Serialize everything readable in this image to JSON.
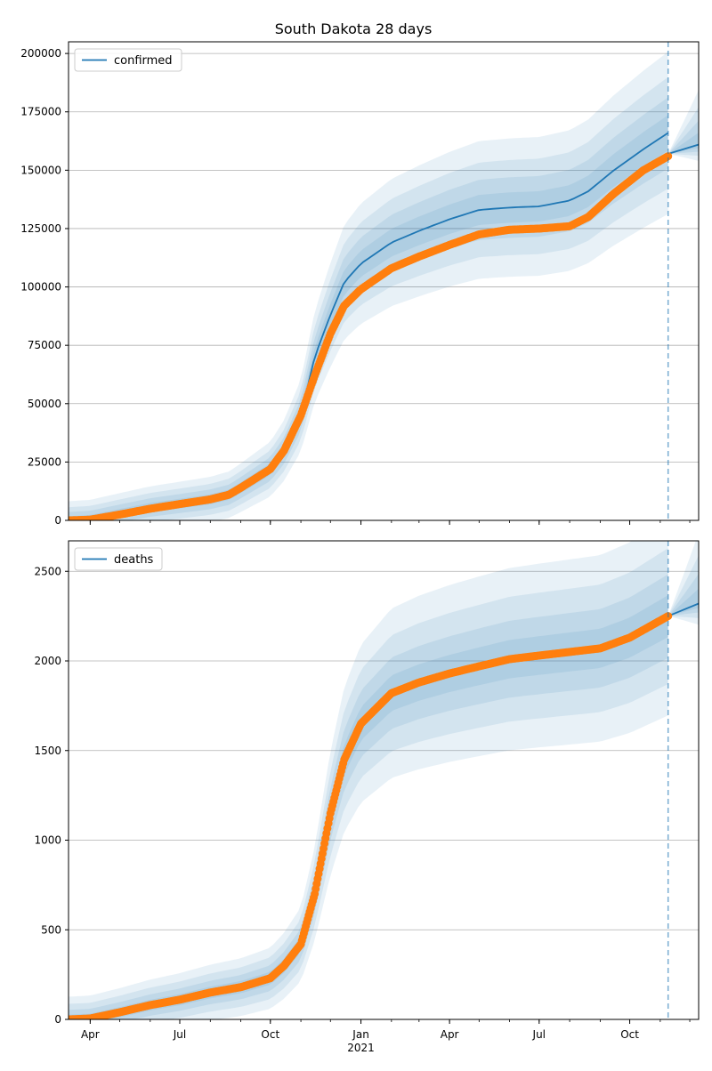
{
  "chart_data": {
    "title": "South Dakota 28 days",
    "x_axis": {
      "ticks": [
        {
          "date": "2020-04-01",
          "label": "Apr",
          "sublabel": ""
        },
        {
          "date": "2020-07-01",
          "label": "Jul",
          "sublabel": ""
        },
        {
          "date": "2020-10-01",
          "label": "Oct",
          "sublabel": ""
        },
        {
          "date": "2021-01-01",
          "label": "Jan",
          "sublabel": "2021"
        },
        {
          "date": "2021-04-01",
          "label": "Apr",
          "sublabel": ""
        },
        {
          "date": "2021-07-01",
          "label": "Jul",
          "sublabel": ""
        },
        {
          "date": "2021-10-01",
          "label": "Oct",
          "sublabel": ""
        }
      ],
      "range": [
        "2020-03-10",
        "2021-12-10"
      ],
      "forecast_start": "2021-11-09"
    },
    "panels": [
      {
        "type": "line",
        "legend": "confirmed",
        "legend_position": "upper-left",
        "grid": true,
        "ylim": [
          0,
          205000
        ],
        "yticks": [
          0,
          25000,
          50000,
          75000,
          100000,
          125000,
          150000,
          175000,
          200000
        ],
        "model": [
          [
            "2020-03-10",
            0
          ],
          [
            "2020-04-01",
            500
          ],
          [
            "2020-05-01",
            3000
          ],
          [
            "2020-06-01",
            5500
          ],
          [
            "2020-07-01",
            7200
          ],
          [
            "2020-08-01",
            9000
          ],
          [
            "2020-08-20",
            11000
          ],
          [
            "2020-09-01",
            14000
          ],
          [
            "2020-10-01",
            22000
          ],
          [
            "2020-10-15",
            30000
          ],
          [
            "2020-11-01",
            45000
          ],
          [
            "2020-11-15",
            70000
          ],
          [
            "2020-12-01",
            88000
          ],
          [
            "2020-12-15",
            102000
          ],
          [
            "2021-01-01",
            110000
          ],
          [
            "2021-02-01",
            119000
          ],
          [
            "2021-03-01",
            124000
          ],
          [
            "2021-04-01",
            129000
          ],
          [
            "2021-05-01",
            133000
          ],
          [
            "2021-06-01",
            134000
          ],
          [
            "2021-07-01",
            134500
          ],
          [
            "2021-08-01",
            137000
          ],
          [
            "2021-08-20",
            141000
          ],
          [
            "2021-09-15",
            150000
          ],
          [
            "2021-10-15",
            159000
          ],
          [
            "2021-11-09",
            166000
          ]
        ],
        "forecast": [
          [
            "2021-11-09",
            157000
          ],
          [
            "2021-12-10",
            161000
          ]
        ],
        "band_scale": [
          0.035,
          0.07,
          0.11,
          0.16
        ],
        "observed": [
          [
            "2020-03-10",
            0
          ],
          [
            "2020-04-01",
            300
          ],
          [
            "2020-05-01",
            2500
          ],
          [
            "2020-06-01",
            5000
          ],
          [
            "2020-07-01",
            7000
          ],
          [
            "2020-08-01",
            9000
          ],
          [
            "2020-08-20",
            11000
          ],
          [
            "2020-09-01",
            14000
          ],
          [
            "2020-10-01",
            22000
          ],
          [
            "2020-10-15",
            30000
          ],
          [
            "2020-11-01",
            45000
          ],
          [
            "2020-11-15",
            62000
          ],
          [
            "2020-12-01",
            80000
          ],
          [
            "2020-12-15",
            92000
          ],
          [
            "2021-01-01",
            99000
          ],
          [
            "2021-02-01",
            108000
          ],
          [
            "2021-03-01",
            113000
          ],
          [
            "2021-04-01",
            118000
          ],
          [
            "2021-05-01",
            122500
          ],
          [
            "2021-06-01",
            124500
          ],
          [
            "2021-07-01",
            125000
          ],
          [
            "2021-08-01",
            126000
          ],
          [
            "2021-08-20",
            130000
          ],
          [
            "2021-09-15",
            140000
          ],
          [
            "2021-10-15",
            150000
          ],
          [
            "2021-11-09",
            156000
          ]
        ]
      },
      {
        "type": "line",
        "legend": "deaths",
        "legend_position": "upper-left",
        "grid": true,
        "ylim": [
          0,
          2670
        ],
        "yticks": [
          0,
          500,
          1000,
          1500,
          2000,
          2500
        ],
        "model": [
          [
            "2020-03-10",
            0
          ],
          [
            "2020-04-01",
            5
          ],
          [
            "2020-05-01",
            40
          ],
          [
            "2020-06-01",
            80
          ],
          [
            "2020-07-01",
            110
          ],
          [
            "2020-08-01",
            150
          ],
          [
            "2020-09-01",
            180
          ],
          [
            "2020-10-01",
            230
          ],
          [
            "2020-10-15",
            300
          ],
          [
            "2020-11-01",
            420
          ],
          [
            "2020-11-15",
            700
          ],
          [
            "2020-12-01",
            1150
          ],
          [
            "2020-12-15",
            1450
          ],
          [
            "2021-01-01",
            1650
          ],
          [
            "2021-02-01",
            1820
          ],
          [
            "2021-03-01",
            1880
          ],
          [
            "2021-04-01",
            1930
          ],
          [
            "2021-05-01",
            1970
          ],
          [
            "2021-06-01",
            2010
          ],
          [
            "2021-07-01",
            2030
          ],
          [
            "2021-08-01",
            2050
          ],
          [
            "2021-09-01",
            2070
          ],
          [
            "2021-10-01",
            2130
          ],
          [
            "2021-11-09",
            2250
          ]
        ],
        "forecast": [
          [
            "2021-11-09",
            2250
          ],
          [
            "2021-12-10",
            2320
          ]
        ],
        "band_scale": [
          0.04,
          0.08,
          0.13,
          0.19
        ],
        "observed": [
          [
            "2020-03-10",
            0
          ],
          [
            "2020-04-01",
            5
          ],
          [
            "2020-05-01",
            40
          ],
          [
            "2020-06-01",
            80
          ],
          [
            "2020-07-01",
            110
          ],
          [
            "2020-08-01",
            150
          ],
          [
            "2020-09-01",
            180
          ],
          [
            "2020-10-01",
            230
          ],
          [
            "2020-10-15",
            300
          ],
          [
            "2020-11-01",
            420
          ],
          [
            "2020-11-15",
            700
          ],
          [
            "2020-12-01",
            1150
          ],
          [
            "2020-12-15",
            1450
          ],
          [
            "2021-01-01",
            1650
          ],
          [
            "2021-02-01",
            1820
          ],
          [
            "2021-03-01",
            1880
          ],
          [
            "2021-04-01",
            1930
          ],
          [
            "2021-05-01",
            1970
          ],
          [
            "2021-06-01",
            2010
          ],
          [
            "2021-07-01",
            2030
          ],
          [
            "2021-08-01",
            2050
          ],
          [
            "2021-09-01",
            2070
          ],
          [
            "2021-10-01",
            2130
          ],
          [
            "2021-11-09",
            2250
          ]
        ]
      }
    ],
    "colors": {
      "model_line": "#1f77b4",
      "band": "#1f77b4",
      "observed": "#ff7f0e",
      "forecast_marker": "#1f77b4",
      "grid": "#b0b0b0",
      "axes": "#000000"
    }
  }
}
